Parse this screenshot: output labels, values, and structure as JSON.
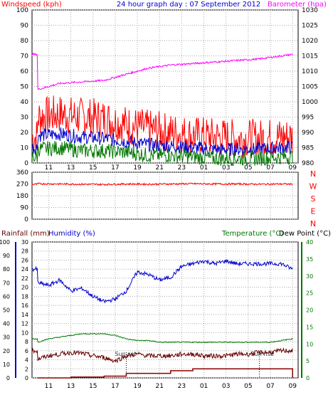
{
  "header": {
    "left_label": "Windspeed (kph)",
    "title": "24 hour graph day : 07 September 2012",
    "right_label": "Barometer (hpa)"
  },
  "colors": {
    "red": "#ff0000",
    "blue": "#0000cc",
    "green": "#007700",
    "magenta": "#ff00ff",
    "darkred": "#660000",
    "maroon": "#8b0000",
    "grid": "#aaaaaa",
    "text": "#000000"
  },
  "x_ticks": [
    "11",
    "13",
    "15",
    "17",
    "19",
    "21",
    "23",
    "01",
    "03",
    "05",
    "07",
    "09"
  ],
  "chart_data": [
    {
      "type": "line",
      "panel": "wind",
      "y_left_ticks": [
        0,
        10,
        20,
        30,
        40,
        50,
        60,
        70,
        80,
        90,
        100
      ],
      "y_right_ticks": [
        980,
        985,
        990,
        995,
        1000,
        1005,
        1010,
        1015,
        1020,
        1025,
        1030
      ],
      "ylim_left": [
        0,
        100
      ],
      "ylim_right": [
        980,
        1030
      ],
      "series": [
        {
          "name": "Windspeed (kph)",
          "color": "red",
          "axis": "left",
          "kind": "gust",
          "x": [
            "10",
            "12",
            "14",
            "16",
            "18",
            "20",
            "22",
            "00",
            "02",
            "04",
            "06",
            "08",
            "09"
          ],
          "values": [
            30,
            32,
            30,
            29,
            25,
            22,
            20,
            18,
            17,
            16,
            16,
            17,
            17
          ]
        },
        {
          "name": "",
          "color": "blue",
          "axis": "left",
          "kind": "avg",
          "x": [
            "10",
            "12",
            "14",
            "16",
            "18",
            "20",
            "22",
            "00",
            "02",
            "04",
            "06",
            "08",
            "09"
          ],
          "values": [
            18,
            19,
            17,
            16,
            14,
            12,
            11,
            10,
            9,
            9,
            9,
            10,
            10
          ]
        },
        {
          "name": "",
          "color": "green",
          "axis": "left",
          "kind": "low",
          "x": [
            "10",
            "12",
            "14",
            "16",
            "18",
            "20",
            "22",
            "00",
            "02",
            "04",
            "06",
            "08",
            "09"
          ],
          "values": [
            9,
            10,
            8,
            8,
            7,
            5,
            5,
            4,
            3,
            3,
            3,
            4,
            4
          ]
        },
        {
          "name": "Barometer (hpa)",
          "color": "magenta",
          "axis": "right",
          "kind": "smooth",
          "x": [
            "10",
            "12",
            "14",
            "16",
            "18",
            "20",
            "22",
            "00",
            "02",
            "04",
            "06",
            "08",
            "09"
          ],
          "values": [
            1004,
            1006,
            1006.5,
            1007,
            1009,
            1011,
            1012,
            1012.5,
            1013,
            1013.5,
            1014,
            1015,
            1015.5
          ]
        }
      ]
    },
    {
      "type": "line",
      "panel": "direction",
      "y_left_ticks": [
        0,
        90,
        180,
        270,
        360
      ],
      "right_labels": [
        "N",
        "W",
        "S",
        "E",
        "N"
      ],
      "ylim": [
        0,
        360
      ],
      "series": [
        {
          "name": "",
          "color": "red",
          "axis": "left",
          "kind": "noisy",
          "x": [
            "10",
            "12",
            "14",
            "16",
            "18",
            "20",
            "22",
            "00",
            "02",
            "04",
            "06",
            "08",
            "09"
          ],
          "values": [
            272,
            270,
            268,
            266,
            270,
            268,
            270,
            272,
            270,
            270,
            268,
            270,
            268
          ]
        }
      ]
    },
    {
      "type": "line",
      "panel": "temphum",
      "left_header_1": "Rainfall (mm)",
      "left_header_2": "Humidity (%)",
      "right_header_1": "Temperature (°C)",
      "right_header_2": "Dew Point (°C)",
      "y_rain_ticks": [
        0,
        2,
        4,
        6,
        8,
        10,
        12,
        14,
        16,
        18,
        20,
        22,
        24,
        26,
        28,
        30
      ],
      "y_hum_ticks": [
        0,
        10,
        20,
        30,
        40,
        50,
        60,
        70,
        80,
        90,
        100
      ],
      "y_temp_ticks": [
        0,
        5,
        10,
        15,
        20,
        25,
        30,
        35,
        40
      ],
      "annotations": [
        {
          "text": "Sun set",
          "x": "18"
        },
        {
          "text": "Sun rise",
          "x": "06"
        }
      ],
      "series": [
        {
          "name": "",
          "color": "blue",
          "axis": "hum",
          "kind": "smooth",
          "x": [
            "10",
            "11",
            "12",
            "13",
            "14",
            "15",
            "16",
            "17",
            "18",
            "19",
            "20",
            "21",
            "22",
            "23",
            "00",
            "01",
            "02",
            "03",
            "04",
            "05",
            "06",
            "07",
            "08",
            "09"
          ],
          "values": [
            70,
            68,
            72,
            64,
            66,
            60,
            56,
            58,
            64,
            78,
            76,
            72,
            74,
            82,
            84,
            86,
            84,
            86,
            84,
            84,
            84,
            84,
            84,
            80
          ]
        },
        {
          "name": "",
          "color": "green",
          "axis": "temp",
          "kind": "smooth",
          "x": [
            "10",
            "11",
            "12",
            "13",
            "14",
            "15",
            "16",
            "17",
            "18",
            "19",
            "20",
            "21",
            "22",
            "23",
            "00",
            "01",
            "02",
            "03",
            "04",
            "05",
            "06",
            "07",
            "08",
            "09"
          ],
          "values": [
            10.5,
            11.5,
            12,
            12.5,
            13,
            13,
            13,
            12.5,
            11.5,
            11,
            11,
            10.5,
            10.5,
            10.5,
            10.5,
            10.5,
            10.5,
            10.5,
            10.5,
            10.5,
            10.5,
            10.5,
            11,
            11.5
          ]
        },
        {
          "name": "",
          "color": "darkred",
          "axis": "temp",
          "kind": "noisy",
          "x": [
            "10",
            "11",
            "12",
            "13",
            "14",
            "15",
            "16",
            "17",
            "18",
            "19",
            "20",
            "21",
            "22",
            "23",
            "00",
            "01",
            "02",
            "03",
            "04",
            "05",
            "06",
            "07",
            "08",
            "09"
          ],
          "values": [
            5.5,
            6.5,
            7,
            7.5,
            7.2,
            6.5,
            6,
            5,
            6.5,
            7,
            6.5,
            6.5,
            6.5,
            7,
            7,
            6.5,
            6.5,
            6.5,
            7,
            7,
            7.5,
            7.5,
            8,
            8
          ]
        },
        {
          "name": "",
          "color": "maroon",
          "axis": "rain",
          "kind": "step",
          "x": [
            "10",
            "13",
            "16",
            "18",
            "22",
            "00",
            "06",
            "08.9",
            "09"
          ],
          "values": [
            0,
            0.2,
            0.4,
            1,
            1.6,
            2,
            2,
            2,
            0
          ]
        }
      ]
    }
  ]
}
